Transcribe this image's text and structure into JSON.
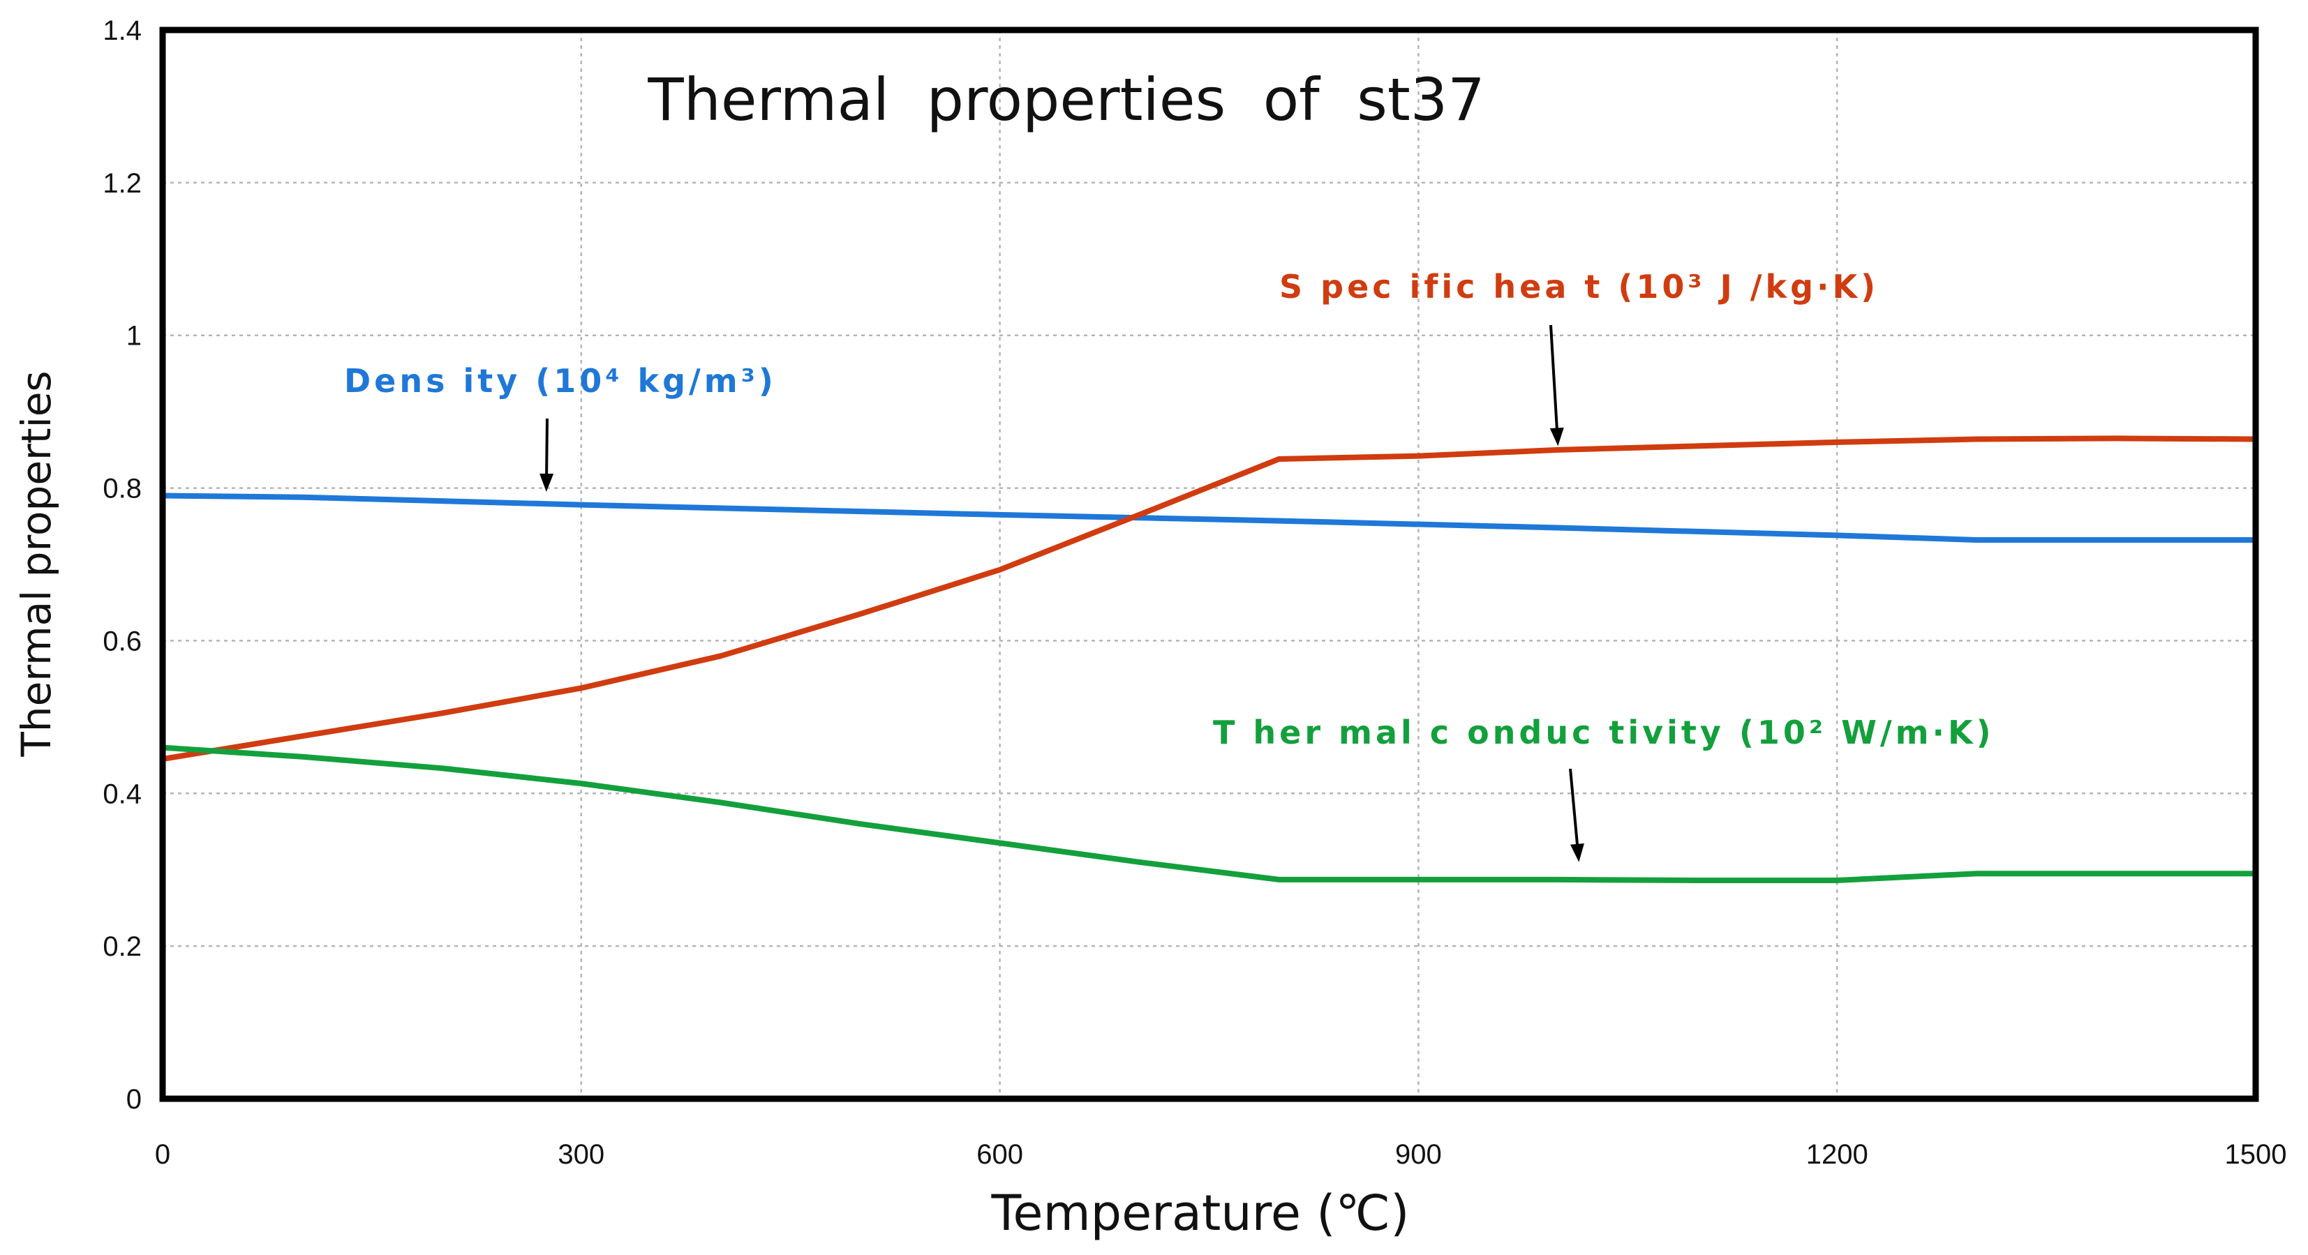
{
  "chart_data": {
    "type": "line",
    "title": "Thermal  properties  of  st37",
    "xlabel": "Temperature (℃)",
    "ylabel": "Thermal properties",
    "xlim": [
      0,
      1500
    ],
    "ylim": [
      0,
      1.4
    ],
    "xticks": [
      0,
      300,
      600,
      900,
      1200,
      1500
    ],
    "yticks": [
      0,
      0.2,
      0.4,
      0.6,
      0.8,
      1,
      1.2,
      1.4
    ],
    "xtick_labels": [
      "0",
      "300",
      "600",
      "900",
      "1200",
      "1500"
    ],
    "ytick_labels": [
      "0",
      "0.2",
      "0.4",
      "0.6",
      "0.8",
      "1",
      "1.2",
      "1.4"
    ],
    "grid": true,
    "series": [
      {
        "name": "Density",
        "label": "Dens ity (10⁴ kg/m³)",
        "color": "#1f78d8",
        "x": [
          0,
          100,
          300,
          600,
          800,
          1000,
          1200,
          1300,
          1500
        ],
        "y": [
          0.79,
          0.788,
          0.778,
          0.765,
          0.757,
          0.748,
          0.738,
          0.732,
          0.732
        ],
        "arrow_at": [
          275,
          0.795
        ]
      },
      {
        "name": "Specific heat",
        "label": "S pec ific  hea t (10³ J /kg·K)",
        "color": "#d03c10",
        "x": [
          0,
          100,
          200,
          300,
          400,
          500,
          600,
          700,
          800,
          900,
          1000,
          1100,
          1200,
          1300,
          1400,
          1500
        ],
        "y": [
          0.445,
          0.475,
          0.505,
          0.538,
          0.58,
          0.635,
          0.693,
          0.765,
          0.838,
          0.842,
          0.85,
          0.855,
          0.86,
          0.864,
          0.865,
          0.864
        ],
        "arrow_at": [
          1000,
          0.855
        ]
      },
      {
        "name": "Thermal conductivity",
        "label": "T her mal  c onduc tivity (10² W/m·K)",
        "color": "#13a03c",
        "x": [
          0,
          100,
          200,
          300,
          400,
          500,
          600,
          700,
          800,
          900,
          1000,
          1100,
          1200,
          1300,
          1400,
          1500
        ],
        "y": [
          0.46,
          0.448,
          0.433,
          0.413,
          0.388,
          0.36,
          0.335,
          0.31,
          0.287,
          0.287,
          0.287,
          0.286,
          0.286,
          0.295,
          0.295,
          0.295
        ],
        "arrow_at": [
          1015,
          0.31
        ]
      }
    ]
  }
}
